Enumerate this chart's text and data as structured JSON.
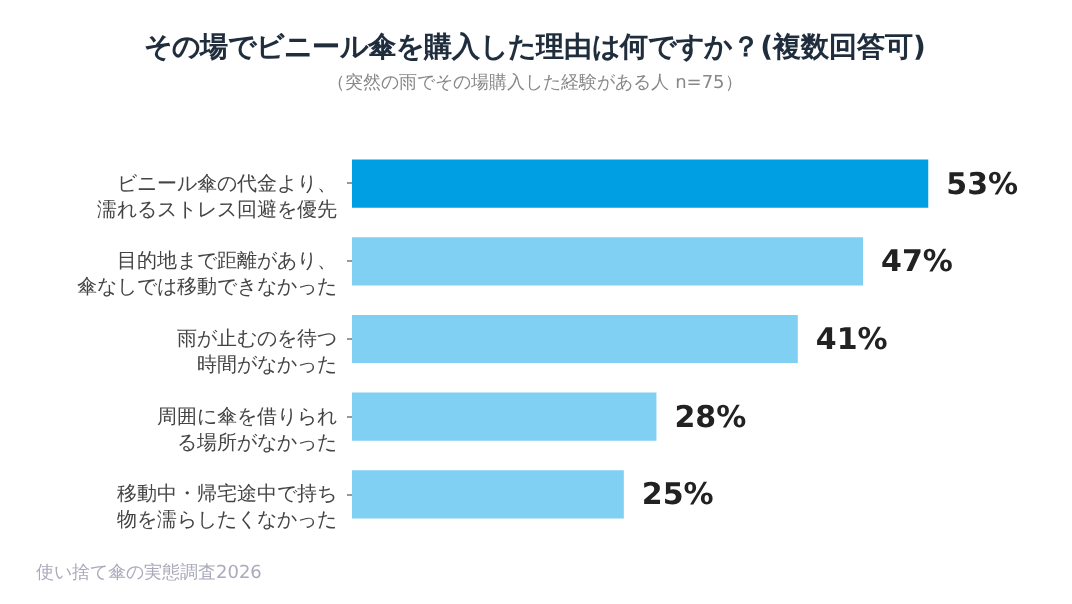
{
  "chart_data": {
    "type": "bar",
    "orientation": "horizontal",
    "title": "その場でビニール傘を購入した理由は何ですか？(複数回答可)",
    "subtitle": "（突然の雨でその場購入した経験がある人 n=75）",
    "categories": [
      "ビニール傘の代金より、濡れるストレス回避を優先",
      "目的地まで距離があり、傘なしでは移動できなかった",
      "雨が止むのを待つ時間がなかった",
      "周囲に傘を借りられる場所がなかった",
      "移動中・帰宅途中で持ち物を濡らしたくなかった"
    ],
    "values": [
      53,
      47,
      41,
      28,
      25
    ],
    "colors": [
      "#009fe3",
      "#7fd0f2",
      "#7fd0f2",
      "#7fd0f2",
      "#7fd0f2"
    ],
    "value_labels": [
      "53%",
      "47%",
      "41%",
      "28%",
      "25%"
    ],
    "annotations": [
      "使い捨て傘の実態調査2026"
    ]
  }
}
